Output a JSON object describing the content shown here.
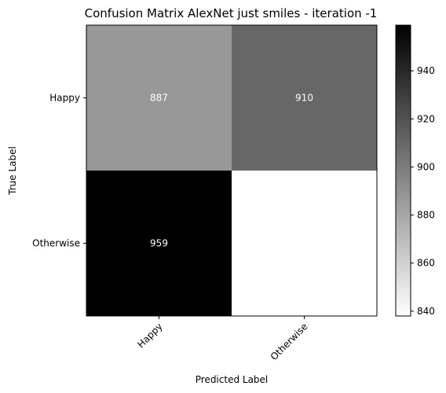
{
  "chart_data": {
    "type": "heatmap",
    "title": "Confusion Matrix AlexNet just smiles - iteration -1",
    "xlabel": "Predicted Label",
    "ylabel": "True Label",
    "x_categories": [
      "Happy",
      "Otherwise"
    ],
    "y_categories": [
      "Happy",
      "Otherwise"
    ],
    "values": [
      [
        887,
        910
      ],
      [
        959,
        838
      ]
    ],
    "cell_labels": [
      [
        "887",
        "910"
      ],
      [
        "959",
        ""
      ]
    ],
    "colormap": "gray_r",
    "color_range": [
      838,
      959
    ],
    "colorbar_ticks": [
      840,
      860,
      880,
      900,
      920,
      940
    ],
    "grid": false
  }
}
